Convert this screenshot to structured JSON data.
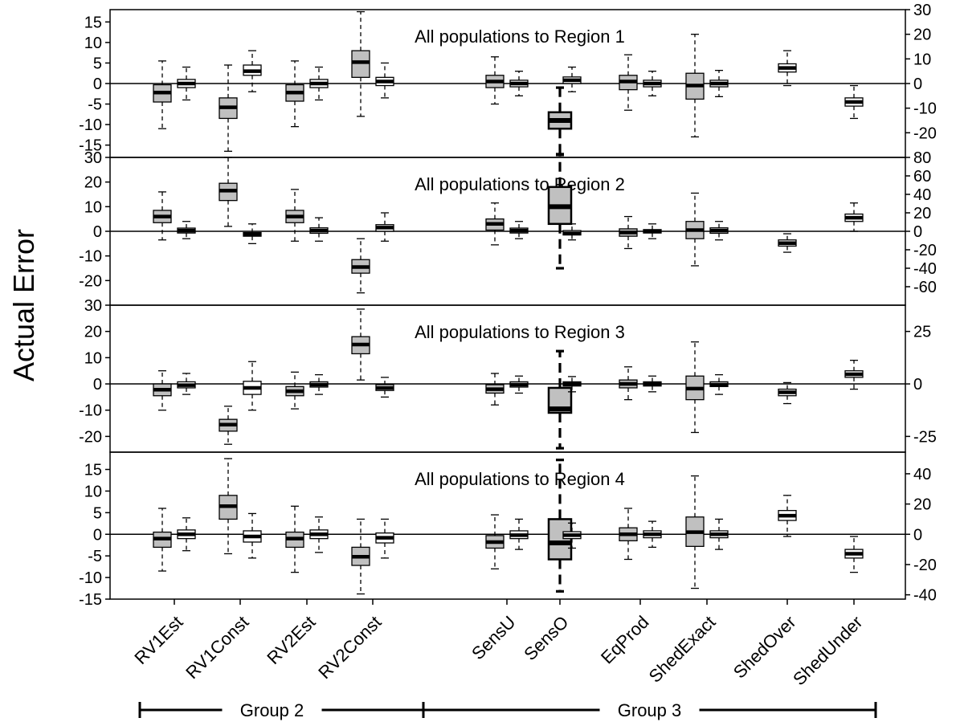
{
  "chart_data": {
    "type": "boxplot",
    "ylabel": "Actual Error",
    "categories": [
      "RV1Est",
      "RV1Const",
      "RV2Est",
      "RV2Const",
      "SensU",
      "SensO",
      "EqProd",
      "ShedExact",
      "ShedOver",
      "ShedUnder"
    ],
    "groups": [
      {
        "label": "Group 2",
        "categories": [
          "RV1Est",
          "RV1Const",
          "RV2Est",
          "RV2Const"
        ]
      },
      {
        "label": "Group 3",
        "categories": [
          "SensU",
          "SensO",
          "EqProd",
          "ShedExact",
          "ShedOver",
          "ShedUnder"
        ]
      }
    ],
    "panels": [
      {
        "title": "All populations to Region 1",
        "ylim_left": [
          -18,
          18
        ],
        "left_ticks": [
          -15,
          -10,
          -5,
          0,
          5,
          10,
          15
        ],
        "right_ticks": [
          -20,
          -10,
          0,
          10,
          20,
          30
        ],
        "right_per_left": 1.667,
        "boxes": [
          {
            "category": "RV1Est",
            "offset": -1,
            "fill": "gray",
            "min": -11,
            "q1": -4.5,
            "median": -2.2,
            "q3": -0.3,
            "max": 5.5
          },
          {
            "category": "RV1Est",
            "offset": 1,
            "fill": "white",
            "min": -4,
            "q1": -1,
            "median": 0,
            "q3": 1,
            "max": 4
          },
          {
            "category": "RV1Const",
            "offset": -1,
            "fill": "gray",
            "min": -16.5,
            "q1": -8.5,
            "median": -5.8,
            "q3": -3.5,
            "max": 4.5
          },
          {
            "category": "RV1Const",
            "offset": 1,
            "fill": "white",
            "min": -2,
            "q1": 2,
            "median": 3,
            "q3": 4.5,
            "max": 8
          },
          {
            "category": "RV2Est",
            "offset": -1,
            "fill": "gray",
            "min": -10.5,
            "q1": -4.3,
            "median": -2.2,
            "q3": -0.3,
            "max": 5.5
          },
          {
            "category": "RV2Est",
            "offset": 1,
            "fill": "white",
            "min": -4,
            "q1": -1,
            "median": 0,
            "q3": 1,
            "max": 4
          },
          {
            "category": "RV2Const",
            "offset": -1,
            "fill": "gray",
            "min": -8,
            "q1": 1.5,
            "median": 5.2,
            "q3": 8,
            "max": 17.5
          },
          {
            "category": "RV2Const",
            "offset": 1,
            "fill": "white",
            "min": -3.5,
            "q1": -0.5,
            "median": 0.5,
            "q3": 1.5,
            "max": 5
          },
          {
            "category": "SensU",
            "offset": -1,
            "fill": "gray",
            "min": -5,
            "q1": -1,
            "median": 0.5,
            "q3": 2,
            "max": 6.5
          },
          {
            "category": "SensU",
            "offset": 1,
            "fill": "white",
            "min": -3,
            "q1": -0.8,
            "median": 0,
            "q3": 0.8,
            "max": 3
          },
          {
            "category": "SensO",
            "offset": 0,
            "fill": "gray",
            "dashed": true,
            "min": -17.2,
            "q1": -11,
            "median": -9,
            "q3": -7,
            "max": -1
          },
          {
            "category": "SensO",
            "offset": 1,
            "fill": "white",
            "min": -2,
            "q1": 0,
            "median": 0.8,
            "q3": 1.6,
            "max": 4
          },
          {
            "category": "EqProd",
            "offset": -1,
            "fill": "gray",
            "min": -6.5,
            "q1": -1.5,
            "median": 0.5,
            "q3": 2,
            "max": 7
          },
          {
            "category": "EqProd",
            "offset": 1,
            "fill": "white",
            "min": -3,
            "q1": -0.8,
            "median": 0,
            "q3": 0.8,
            "max": 3
          },
          {
            "category": "ShedExact",
            "offset": -1,
            "fill": "gray",
            "min": -13,
            "q1": -3.8,
            "median": -0.5,
            "q3": 2.5,
            "max": 12
          },
          {
            "category": "ShedExact",
            "offset": 1,
            "fill": "white",
            "min": -3.2,
            "q1": -0.8,
            "median": 0,
            "q3": 0.8,
            "max": 3.2
          },
          {
            "category": "ShedOver",
            "offset": 0,
            "fill": "white",
            "min": -0.5,
            "q1": 2.8,
            "median": 3.8,
            "q3": 4.8,
            "max": 8
          },
          {
            "category": "ShedUnder",
            "offset": 0,
            "fill": "white",
            "min": -8.5,
            "q1": -5.5,
            "median": -4.5,
            "q3": -3.5,
            "max": -0.5
          }
        ]
      },
      {
        "title": "All populations to      Region 2",
        "ylim_left": [
          -30,
          30
        ],
        "left_ticks": [
          -20,
          -10,
          0,
          10,
          20,
          30
        ],
        "right_ticks": [
          -60,
          -40,
          -20,
          0,
          20,
          40,
          60,
          80
        ],
        "right_per_left": 2.667,
        "boxes": [
          {
            "category": "RV1Est",
            "offset": -1,
            "fill": "gray",
            "min": -3.5,
            "q1": 3.5,
            "median": 6,
            "q3": 8.5,
            "max": 16
          },
          {
            "category": "RV1Est",
            "offset": 1,
            "fill": "white",
            "min": -3,
            "q1": -0.7,
            "median": 0.3,
            "q3": 1.3,
            "max": 4
          },
          {
            "category": "RV1Const",
            "offset": -1,
            "fill": "gray",
            "min": 2,
            "q1": 12.5,
            "median": 16.5,
            "q3": 19.5,
            "max": 30
          },
          {
            "category": "RV1Const",
            "offset": 1,
            "fill": "white",
            "min": -5,
            "q1": -2,
            "median": -1.2,
            "q3": -0.5,
            "max": 3
          },
          {
            "category": "RV2Est",
            "offset": -1,
            "fill": "gray",
            "min": -4,
            "q1": 3.5,
            "median": 6,
            "q3": 8.5,
            "max": 17
          },
          {
            "category": "RV2Est",
            "offset": 1,
            "fill": "white",
            "min": -4,
            "q1": -0.8,
            "median": 0.3,
            "q3": 1.4,
            "max": 5.5
          },
          {
            "category": "RV2Const",
            "offset": -1,
            "fill": "gray",
            "min": -25,
            "q1": -17,
            "median": -14.5,
            "q3": -11.5,
            "max": -3
          },
          {
            "category": "RV2Const",
            "offset": 1,
            "fill": "white",
            "min": -4,
            "q1": 0,
            "median": 1.5,
            "q3": 2.7,
            "max": 7.5
          },
          {
            "category": "SensU",
            "offset": -1,
            "fill": "gray",
            "min": -5.5,
            "q1": 0.5,
            "median": 3,
            "q3": 5,
            "max": 11.5
          },
          {
            "category": "SensU",
            "offset": 1,
            "fill": "white",
            "min": -3,
            "q1": -0.7,
            "median": 0.3,
            "q3": 1.3,
            "max": 4
          },
          {
            "category": "SensO",
            "offset": 0,
            "fill": "gray",
            "dashed": true,
            "min": -15,
            "q1": 3,
            "median": 10,
            "q3": 18,
            "max": 31
          },
          {
            "category": "SensO",
            "offset": 1,
            "fill": "white",
            "min": -3.5,
            "q1": -1.5,
            "median": -0.8,
            "q3": 0.3,
            "max": 3
          },
          {
            "category": "EqProd",
            "offset": -1,
            "fill": "gray",
            "min": -7,
            "q1": -2,
            "median": -0.5,
            "q3": 1,
            "max": 6
          },
          {
            "category": "EqProd",
            "offset": 1,
            "fill": "white",
            "min": -3,
            "q1": -0.7,
            "median": 0,
            "q3": 0.7,
            "max": 3
          },
          {
            "category": "ShedExact",
            "offset": -1,
            "fill": "gray",
            "min": -14,
            "q1": -3,
            "median": 0.5,
            "q3": 4,
            "max": 15.5
          },
          {
            "category": "ShedExact",
            "offset": 1,
            "fill": "white",
            "min": -3.5,
            "q1": -0.8,
            "median": 0.3,
            "q3": 1.4,
            "max": 4
          },
          {
            "category": "ShedOver",
            "offset": 0,
            "fill": "white",
            "min": -8.5,
            "q1": -6,
            "median": -4.8,
            "q3": -3.5,
            "max": -1
          },
          {
            "category": "ShedUnder",
            "offset": 0,
            "fill": "white",
            "min": 0,
            "q1": 4,
            "median": 5.5,
            "q3": 7,
            "max": 11.5
          }
        ]
      },
      {
        "title": "All populations to Region 3",
        "ylim_left": [
          -26,
          30
        ],
        "left_ticks": [
          -20,
          -10,
          0,
          10,
          20,
          30
        ],
        "right_ticks": [
          -25,
          0,
          25
        ],
        "right_per_left": 1.25,
        "boxes": [
          {
            "category": "RV1Est",
            "offset": -1,
            "fill": "gray",
            "min": -10,
            "q1": -4.5,
            "median": -2.2,
            "q3": 0,
            "max": 5
          },
          {
            "category": "RV1Est",
            "offset": 1,
            "fill": "white",
            "min": -4,
            "q1": -1.5,
            "median": -0.5,
            "q3": 0.8,
            "max": 4
          },
          {
            "category": "RV1Const",
            "offset": -1,
            "fill": "gray",
            "min": -23,
            "q1": -18,
            "median": -15.5,
            "q3": -13.5,
            "max": -8.5
          },
          {
            "category": "RV1Const",
            "offset": 1,
            "fill": "white",
            "min": -10,
            "q1": -4,
            "median": -1.5,
            "q3": 1,
            "max": 8.5
          },
          {
            "category": "RV2Est",
            "offset": -1,
            "fill": "gray",
            "min": -9.5,
            "q1": -4.5,
            "median": -2.8,
            "q3": -1,
            "max": 4.5
          },
          {
            "category": "RV2Est",
            "offset": 1,
            "fill": "white",
            "min": -4,
            "q1": -1.2,
            "median": -0.3,
            "q3": 0.8,
            "max": 3.5
          },
          {
            "category": "RV2Const",
            "offset": -1,
            "fill": "gray",
            "min": 1.5,
            "q1": 11.5,
            "median": 15,
            "q3": 18,
            "max": 28.5
          },
          {
            "category": "RV2Const",
            "offset": 1,
            "fill": "white",
            "min": -5,
            "q1": -2.5,
            "median": -1.5,
            "q3": -0.3,
            "max": 2.5
          },
          {
            "category": "SensU",
            "offset": -1,
            "fill": "gray",
            "min": -8,
            "q1": -3.5,
            "median": -2,
            "q3": -0.3,
            "max": 4
          },
          {
            "category": "SensU",
            "offset": 1,
            "fill": "white",
            "min": -3.5,
            "q1": -1.2,
            "median": -0.3,
            "q3": 0.8,
            "max": 3
          },
          {
            "category": "SensO",
            "offset": 0,
            "fill": "gray",
            "dashed": true,
            "min": -24.5,
            "q1": -11,
            "median": -9.5,
            "q3": -1.5,
            "max": 12.5
          },
          {
            "category": "SensO",
            "offset": 1,
            "fill": "white",
            "min": -3,
            "q1": -0.8,
            "median": 0,
            "q3": 0.8,
            "max": 2.8
          },
          {
            "category": "EqProd",
            "offset": -1,
            "fill": "gray",
            "min": -6,
            "q1": -1.5,
            "median": 0,
            "q3": 1.5,
            "max": 6.5
          },
          {
            "category": "EqProd",
            "offset": 1,
            "fill": "white",
            "min": -3,
            "q1": -0.8,
            "median": 0,
            "q3": 0.8,
            "max": 3
          },
          {
            "category": "ShedExact",
            "offset": -1,
            "fill": "gray",
            "min": -18.5,
            "q1": -6,
            "median": -1.8,
            "q3": 3,
            "max": 16
          },
          {
            "category": "ShedExact",
            "offset": 1,
            "fill": "white",
            "min": -4,
            "q1": -1,
            "median": -0.3,
            "q3": 0.8,
            "max": 3.5
          },
          {
            "category": "ShedOver",
            "offset": 0,
            "fill": "white",
            "min": -7.5,
            "q1": -4.5,
            "median": -3.2,
            "q3": -2,
            "max": 0.5
          },
          {
            "category": "ShedUnder",
            "offset": 0,
            "fill": "white",
            "min": -2,
            "q1": 2.5,
            "median": 3.7,
            "q3": 5,
            "max": 9
          }
        ]
      },
      {
        "title": "All populations to      Region 4",
        "ylim_left": [
          -15,
          19
        ],
        "left_ticks": [
          -15,
          -10,
          -5,
          0,
          5,
          10,
          15
        ],
        "right_ticks": [
          -40,
          -20,
          0,
          20,
          40
        ],
        "right_per_left": 2.857,
        "boxes": [
          {
            "category": "RV1Est",
            "offset": -1,
            "fill": "gray",
            "min": -8.5,
            "q1": -3,
            "median": -1,
            "q3": 0.5,
            "max": 6
          },
          {
            "category": "RV1Est",
            "offset": 1,
            "fill": "white",
            "min": -3.8,
            "q1": -1,
            "median": 0,
            "q3": 1,
            "max": 3.8
          },
          {
            "category": "RV1Const",
            "offset": -1,
            "fill": "gray",
            "min": -4.5,
            "q1": 3.5,
            "median": 6.5,
            "q3": 9,
            "max": 17.5
          },
          {
            "category": "RV1Const",
            "offset": 1,
            "fill": "white",
            "min": -5.5,
            "q1": -1.8,
            "median": -0.5,
            "q3": 0.8,
            "max": 4.8
          },
          {
            "category": "RV2Est",
            "offset": -1,
            "fill": "gray",
            "min": -8.8,
            "q1": -3,
            "median": -1,
            "q3": 0.5,
            "max": 6.5
          },
          {
            "category": "RV2Est",
            "offset": 1,
            "fill": "white",
            "min": -4.2,
            "q1": -1,
            "median": 0,
            "q3": 1,
            "max": 4
          },
          {
            "category": "RV2Const",
            "offset": -1,
            "fill": "gray",
            "min": -13.8,
            "q1": -7.2,
            "median": -5.2,
            "q3": -3,
            "max": 3.5
          },
          {
            "category": "RV2Const",
            "offset": 1,
            "fill": "white",
            "min": -5.5,
            "q1": -2,
            "median": -0.8,
            "q3": 0.3,
            "max": 3.5
          },
          {
            "category": "SensU",
            "offset": -1,
            "fill": "gray",
            "min": -8,
            "q1": -3.2,
            "median": -1.8,
            "q3": -0.3,
            "max": 4.5
          },
          {
            "category": "SensU",
            "offset": 1,
            "fill": "white",
            "min": -3.5,
            "q1": -1,
            "median": -0.2,
            "q3": 0.8,
            "max": 3.5
          },
          {
            "category": "SensO",
            "offset": 0,
            "fill": "gray",
            "dashed": true,
            "min": -13.2,
            "q1": -5.8,
            "median": -2,
            "q3": 3.5,
            "max": 17.2
          },
          {
            "category": "SensO",
            "offset": 1,
            "fill": "white",
            "min": -3.2,
            "q1": -1,
            "median": -0.2,
            "q3": 0.6,
            "max": 2.6
          },
          {
            "category": "EqProd",
            "offset": -1,
            "fill": "gray",
            "min": -5.8,
            "q1": -1.5,
            "median": 0,
            "q3": 1.5,
            "max": 6
          },
          {
            "category": "EqProd",
            "offset": 1,
            "fill": "white",
            "min": -3,
            "q1": -0.8,
            "median": 0,
            "q3": 0.8,
            "max": 3
          },
          {
            "category": "ShedExact",
            "offset": -1,
            "fill": "gray",
            "min": -12.5,
            "q1": -2.8,
            "median": 0.5,
            "q3": 4,
            "max": 13.5
          },
          {
            "category": "ShedExact",
            "offset": 1,
            "fill": "white",
            "min": -3.5,
            "q1": -0.8,
            "median": 0,
            "q3": 0.8,
            "max": 3.5
          },
          {
            "category": "ShedOver",
            "offset": 0,
            "fill": "white",
            "min": -0.5,
            "q1": 3.2,
            "median": 4.3,
            "q3": 5.5,
            "max": 9
          },
          {
            "category": "ShedUnder",
            "offset": 0,
            "fill": "white",
            "min": -8.8,
            "q1": -5.5,
            "median": -4.5,
            "q3": -3.5,
            "max": -0.5
          }
        ]
      }
    ]
  },
  "colors": {
    "gray_box": "#c0c0c0",
    "white_box": "#ffffff",
    "line": "#000000"
  }
}
